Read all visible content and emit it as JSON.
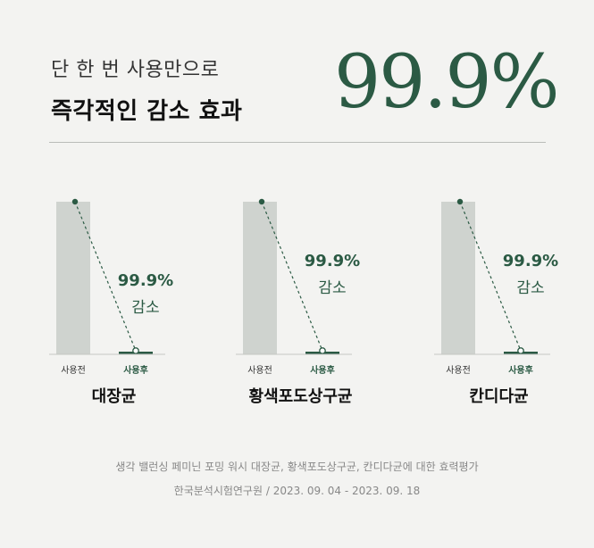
{
  "headline": {
    "line1": "단 한 번 사용만으로",
    "line2": "즉각적인 감소 효과",
    "big_stat": "99.9%"
  },
  "chart_data": [
    {
      "type": "bar",
      "title": "대장균",
      "categories": [
        "사용전",
        "사용후"
      ],
      "values": [
        100,
        0.1
      ],
      "annotation": {
        "value": "99.9%",
        "label": "감소"
      },
      "ylim": [
        0,
        100
      ]
    },
    {
      "type": "bar",
      "title": "황색포도상구균",
      "categories": [
        "사용전",
        "사용후"
      ],
      "values": [
        100,
        0.1
      ],
      "annotation": {
        "value": "99.9%",
        "label": "감소"
      },
      "ylim": [
        0,
        100
      ]
    },
    {
      "type": "bar",
      "title": "칸디다균",
      "categories": [
        "사용전",
        "사용후"
      ],
      "values": [
        100,
        0.1
      ],
      "annotation": {
        "value": "99.9%",
        "label": "감소"
      },
      "ylim": [
        0,
        100
      ]
    }
  ],
  "footer": {
    "line1": "생각 밸런싱 페미닌 포밍 워시 대장균, 황색포도상구균, 칸디다균에 대한 효력평가",
    "line2": "한국분석시험연구원 / 2023. 09. 04 - 2023. 09. 18"
  },
  "colors": {
    "accent": "#2b5a44",
    "bar_before": "#cfd3cf",
    "background": "#f3f3f1"
  }
}
